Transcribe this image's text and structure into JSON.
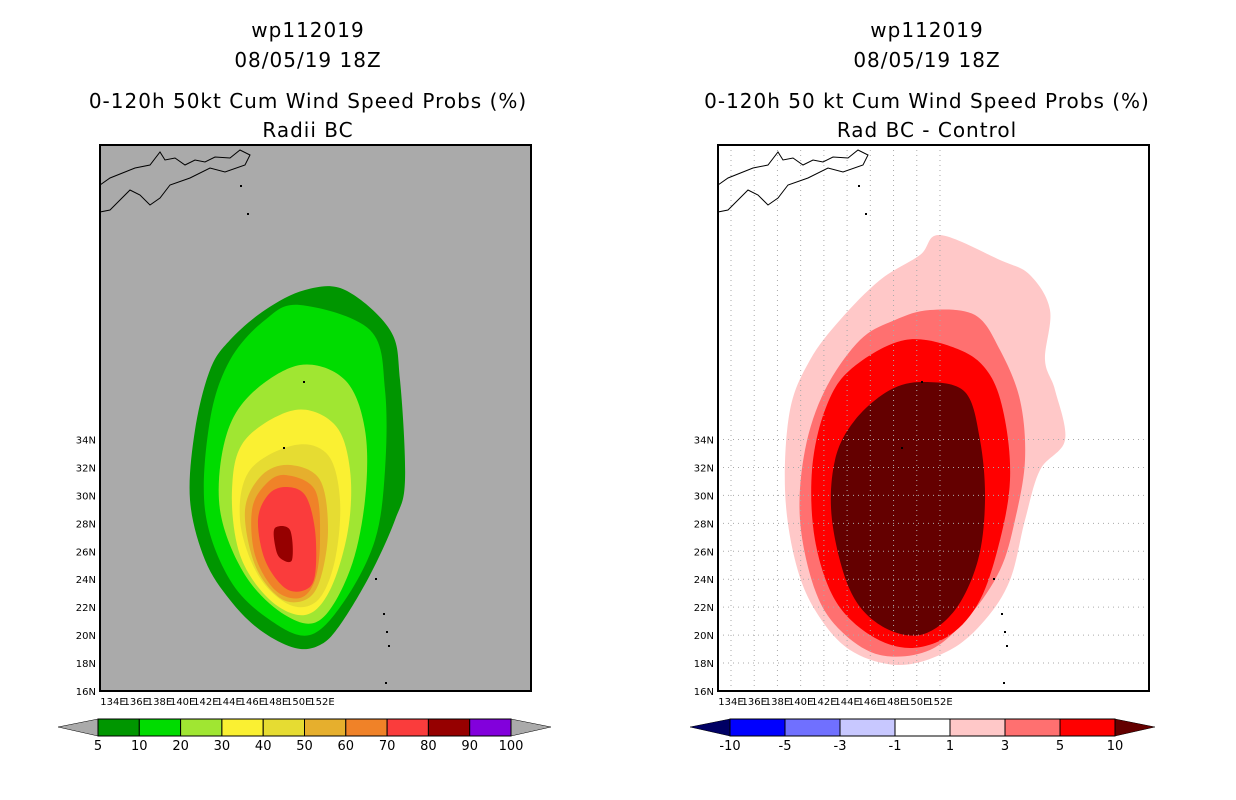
{
  "chart_data": [
    {
      "type": "heatmap",
      "title_lines": [
        "wp112019",
        "08/05/19 18Z",
        "0-120h 50kt Cum Wind Speed Probs (%)",
        "Radii BC"
      ],
      "x_ticks": [
        "134E",
        "136E",
        "138E",
        "140E",
        "142E",
        "144E",
        "146E",
        "148E",
        "150E",
        "152E"
      ],
      "y_ticks": [
        "16N",
        "18N",
        "20N",
        "22N",
        "24N",
        "26N",
        "28N",
        "30N",
        "32N",
        "34N"
      ],
      "xlim": [
        133.4,
        152
      ],
      "ylim": [
        16,
        35.5
      ],
      "background": "#aaaaaa",
      "colorbar": {
        "levels": [
          "5",
          "10",
          "20",
          "30",
          "40",
          "50",
          "60",
          "70",
          "80",
          "90",
          "100"
        ],
        "colors": [
          "#009600",
          "#00dc00",
          "#a0e632",
          "#faf032",
          "#e6dc32",
          "#e6af2d",
          "#f08228",
          "#fa3c3c",
          "#960000",
          "#8200dc"
        ],
        "under": "#aaaaaa",
        "over": "#aaaaaa"
      },
      "max_probability_band": "80-90"
    },
    {
      "type": "heatmap",
      "title_lines": [
        "wp112019",
        "08/05/19 18Z",
        "0-120h 50 kt Cum Wind Speed Probs (%)",
        "Rad BC - Control"
      ],
      "x_ticks": [
        "134E",
        "136E",
        "138E",
        "140E",
        "142E",
        "144E",
        "146E",
        "148E",
        "150E",
        "152E"
      ],
      "y_ticks": [
        "16N",
        "18N",
        "20N",
        "22N",
        "24N",
        "26N",
        "28N",
        "30N",
        "32N",
        "34N"
      ],
      "xlim": [
        133.4,
        152
      ],
      "ylim": [
        16,
        35.5
      ],
      "background": "#ffffff",
      "grid": true,
      "colorbar": {
        "levels": [
          "-10",
          "-5",
          "-3",
          "-1",
          "1",
          "3",
          "5",
          "10"
        ],
        "colors": [
          "#0000ff",
          "#7070ff",
          "#c8c8ff",
          "#ffffff",
          "#ffc8c8",
          "#ff7070",
          "#ff0000"
        ],
        "under": "#000064",
        "over": "#640000"
      },
      "max_difference_band": ">10"
    }
  ]
}
